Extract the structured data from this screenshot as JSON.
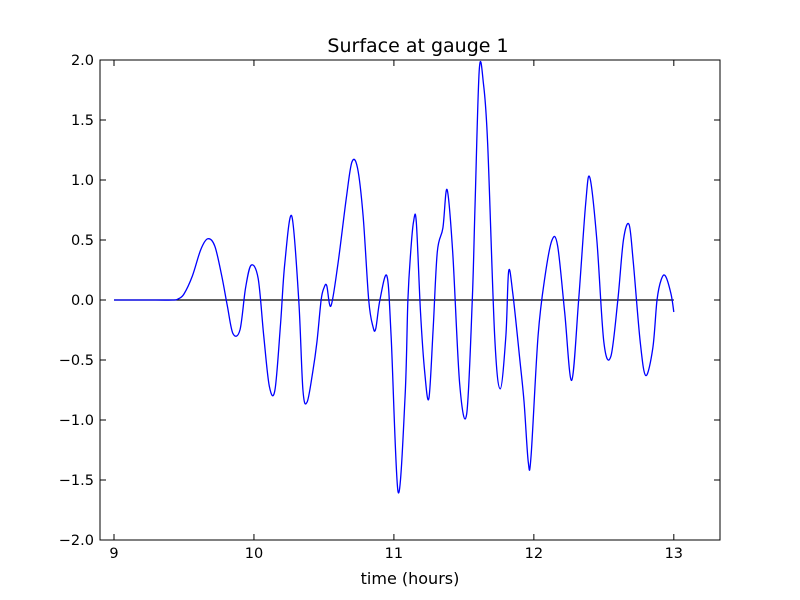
{
  "chart_data": {
    "type": "line",
    "title": "Surface at gauge 1",
    "xlabel": "time (hours)",
    "ylabel": "",
    "xlim": [
      8.9,
      13.33
    ],
    "ylim": [
      -2.0,
      2.0
    ],
    "xticks": [
      9,
      10,
      11,
      12,
      13
    ],
    "xtick_labels": [
      "9",
      "10",
      "11",
      "12",
      "13"
    ],
    "yticks": [
      -2.0,
      -1.5,
      -1.0,
      -0.5,
      0.0,
      0.5,
      1.0,
      1.5,
      2.0
    ],
    "ytick_labels": [
      "−2.0",
      "−1.5",
      "−1.0",
      "−0.5",
      "0.0",
      "0.5",
      "1.0",
      "1.5",
      "2.0"
    ],
    "grid": false,
    "series": [
      {
        "name": "",
        "color": "#0000ff",
        "x": [
          9.0,
          9.3,
          9.42,
          9.46,
          9.5,
          9.56,
          9.62,
          9.67,
          9.72,
          9.77,
          9.81,
          9.85,
          9.9,
          9.94,
          9.98,
          10.03,
          10.07,
          10.11,
          10.15,
          10.19,
          10.22,
          10.27,
          10.32,
          10.35,
          10.38,
          10.42,
          10.45,
          10.48,
          10.5,
          10.52,
          10.55,
          10.6,
          10.66,
          10.7,
          10.74,
          10.78,
          10.82,
          10.85,
          10.87,
          10.9,
          10.95,
          10.98,
          11.03,
          11.08,
          11.1,
          11.12,
          11.14,
          11.16,
          11.19,
          11.22,
          11.25,
          11.28,
          11.31,
          11.35,
          11.38,
          11.42,
          11.47,
          11.52,
          11.56,
          11.58,
          11.61,
          11.64,
          11.67,
          11.72,
          11.76,
          11.8,
          11.82,
          11.85,
          11.9,
          11.93,
          11.96,
          11.98,
          12.03,
          12.08,
          12.13,
          12.17,
          12.22,
          12.27,
          12.32,
          12.37,
          12.4,
          12.45,
          12.5,
          12.55,
          12.6,
          12.64,
          12.68,
          12.71,
          12.76,
          12.8,
          12.85,
          12.88,
          12.91,
          12.94,
          12.98,
          13.0
        ],
        "y": [
          0.0,
          0.0,
          0.0,
          0.01,
          0.05,
          0.2,
          0.42,
          0.51,
          0.45,
          0.2,
          -0.05,
          -0.28,
          -0.25,
          0.1,
          0.29,
          0.18,
          -0.3,
          -0.72,
          -0.75,
          -0.2,
          0.3,
          0.7,
          0.0,
          -0.75,
          -0.85,
          -0.6,
          -0.35,
          0.0,
          0.1,
          0.12,
          -0.05,
          0.3,
          0.85,
          1.15,
          1.1,
          0.7,
          0.0,
          -0.22,
          -0.24,
          0.0,
          0.2,
          -0.3,
          -1.6,
          -0.8,
          0.0,
          0.4,
          0.65,
          0.65,
          -0.1,
          -0.6,
          -0.82,
          -0.25,
          0.4,
          0.6,
          0.92,
          0.4,
          -0.7,
          -0.95,
          0.0,
          0.8,
          1.92,
          1.8,
          1.3,
          -0.3,
          -0.74,
          -0.3,
          0.24,
          0.05,
          -0.5,
          -0.85,
          -1.35,
          -1.3,
          -0.3,
          0.2,
          0.5,
          0.45,
          -0.1,
          -0.67,
          0.0,
          0.8,
          1.02,
          0.5,
          -0.35,
          -0.47,
          0.0,
          0.5,
          0.63,
          0.32,
          -0.35,
          -0.63,
          -0.4,
          0.0,
          0.17,
          0.2,
          0.05,
          -0.1
        ]
      }
    ],
    "reference_line": {
      "y": 0.0,
      "x_range": [
        9.0,
        13.0
      ],
      "color": "#000000"
    }
  }
}
